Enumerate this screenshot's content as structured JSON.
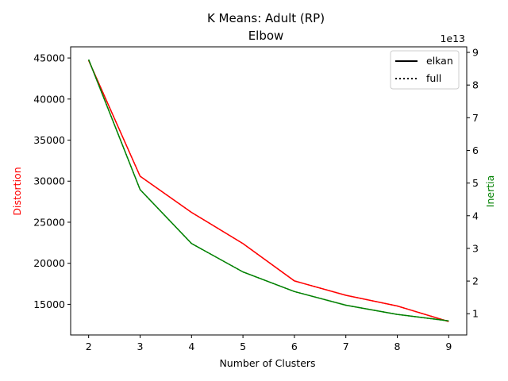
{
  "chart_data": {
    "type": "line",
    "title_line1": "K Means: Adult (RP)",
    "title_line2": "Elbow",
    "xlabel": "Number of Clusters",
    "ylabel_left": "Distortion",
    "ylabel_right": "Inertia",
    "ylabel_left_color": "#ff0000",
    "ylabel_right_color": "#008000",
    "right_axis_offset_text": "1e13",
    "x": [
      2,
      3,
      4,
      5,
      6,
      7,
      8,
      9
    ],
    "xlim": [
      1.65,
      9.35
    ],
    "ylim_left": [
      11270,
      46360
    ],
    "ylim_right": [
      0.35,
      9.17
    ],
    "x_ticks": [
      2,
      3,
      4,
      5,
      6,
      7,
      8,
      9
    ],
    "y_ticks_left": [
      15000,
      20000,
      25000,
      30000,
      35000,
      40000,
      45000
    ],
    "y_ticks_right": [
      1,
      2,
      3,
      4,
      5,
      6,
      7,
      8,
      9
    ],
    "series": [
      {
        "axis": "left",
        "color": "#ff0000",
        "style": "solid",
        "values": [
          44700,
          30600,
          26200,
          22400,
          17850,
          16100,
          14800,
          12900
        ]
      },
      {
        "axis": "left",
        "color": "#ff0000",
        "style": "dotted",
        "values": [
          44700,
          30600,
          26200,
          22400,
          17850,
          16100,
          14800,
          12900
        ]
      },
      {
        "axis": "right",
        "color": "#008000",
        "style": "solid",
        "values": [
          8.78,
          4.8,
          3.15,
          2.28,
          1.68,
          1.26,
          0.98,
          0.78
        ]
      },
      {
        "axis": "right",
        "color": "#008000",
        "style": "dotted",
        "values": [
          8.78,
          4.8,
          3.15,
          2.28,
          1.68,
          1.26,
          0.98,
          0.78
        ]
      }
    ],
    "legend": {
      "placement": "top-right",
      "entries": [
        {
          "label": "elkan",
          "style": "solid",
          "color": "#000000"
        },
        {
          "label": "full",
          "style": "dotted",
          "color": "#000000"
        }
      ]
    }
  }
}
